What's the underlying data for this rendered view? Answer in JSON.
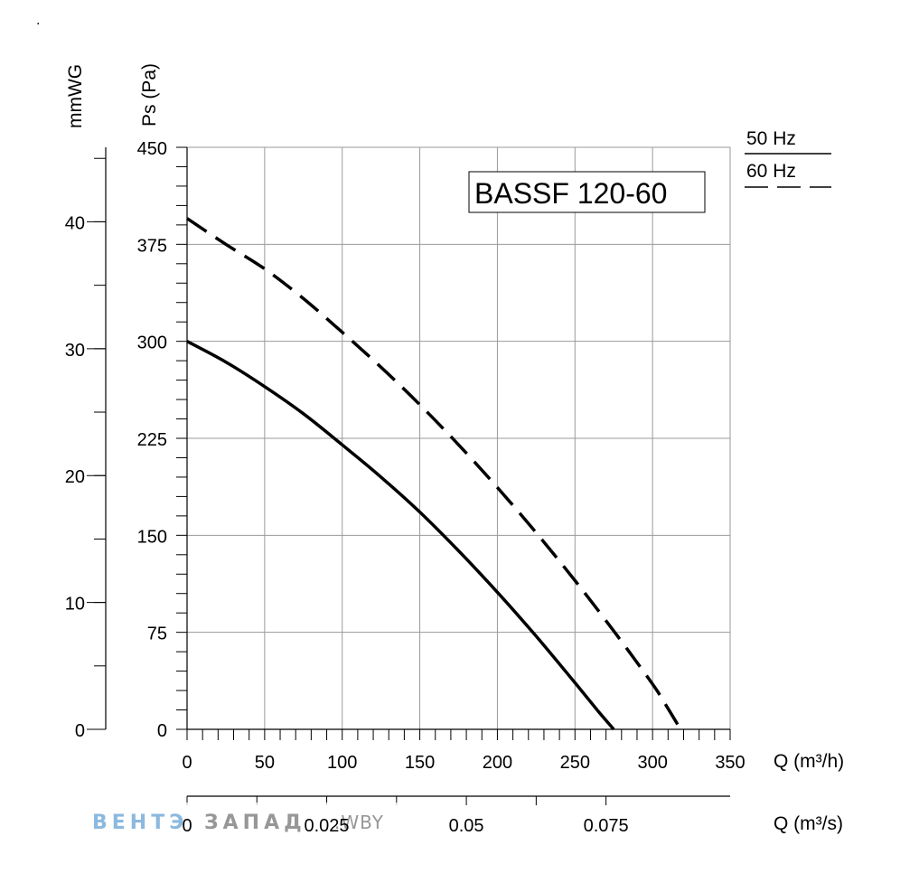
{
  "corner_mark": ".",
  "chart_data": {
    "type": "line",
    "title": "BASSF 120-60",
    "xlabel": "Q (m³/h)",
    "xlabel_secondary": "Q (m³/s)",
    "ylabel": "Ps (Pa)",
    "ylabel_secondary": "mmWG",
    "xlim": [
      0,
      350
    ],
    "ylim": [
      0,
      450
    ],
    "x_ticks": [
      0,
      50,
      100,
      150,
      200,
      250,
      300,
      350
    ],
    "y_ticks": [
      0,
      75,
      150,
      225,
      300,
      375,
      450
    ],
    "x2_ticks": [
      {
        "label": "0",
        "m3h": 0
      },
      {
        "label": "0.025",
        "m3h": 90
      },
      {
        "label": "0.05",
        "m3h": 180
      },
      {
        "label": "0.075",
        "m3h": 270
      }
    ],
    "y2_ticks": [
      {
        "label": "0",
        "pa": 0
      },
      {
        "label": "10",
        "pa": 98.1
      },
      {
        "label": "20",
        "pa": 196.2
      },
      {
        "label": "30",
        "pa": 294.3
      },
      {
        "label": "40",
        "pa": 392.4
      }
    ],
    "grid": true,
    "legend_position": "top-right",
    "series": [
      {
        "name": "50 Hz",
        "style": "solid",
        "x": [
          0,
          25,
          50,
          75,
          100,
          125,
          150,
          175,
          200,
          225,
          250,
          265,
          275
        ],
        "y": [
          300,
          284,
          265,
          244,
          220,
          195,
          168,
          138,
          106,
          72,
          36,
          14,
          0
        ]
      },
      {
        "name": "60 Hz",
        "style": "dashed",
        "x": [
          0,
          25,
          50,
          75,
          100,
          125,
          150,
          175,
          200,
          225,
          250,
          275,
          300,
          310,
          318
        ],
        "y": [
          395,
          375,
          356,
          333,
          307,
          280,
          251,
          220,
          187,
          152,
          115,
          76,
          35,
          16,
          0
        ]
      }
    ]
  },
  "watermark": {
    "part1": "ВЕНТЭ",
    "part2": "ЗАПАД",
    "domain": ".WBY",
    "color1": "#7fb2dc",
    "color2": "#8c8c8c"
  }
}
